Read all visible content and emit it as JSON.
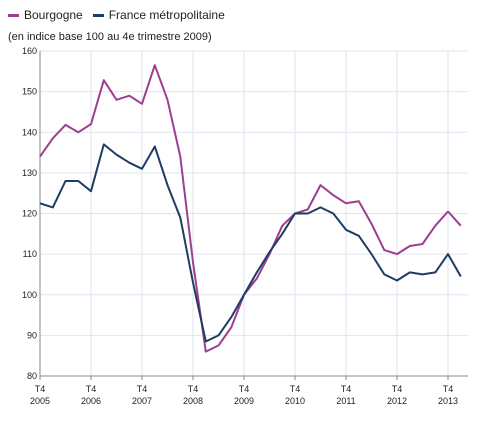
{
  "legend": {
    "series_1": "Bourgogne",
    "series_2": "France métropolitaine"
  },
  "subtitle": "(en indice base 100 au 4e trimestre 2009)",
  "colors": {
    "bourgogne": "#9b3f8f",
    "france": "#1f3c63",
    "grid": "#dde6f0",
    "axis": "#8a8a8a"
  },
  "chart_data": {
    "type": "line",
    "title": "",
    "subtitle": "(en indice base 100 au 4e trimestre 2009)",
    "xlabel": "",
    "ylabel": "",
    "ylim": [
      80,
      160
    ],
    "yticks": [
      80,
      90,
      100,
      110,
      120,
      130,
      140,
      150,
      160
    ],
    "x": [
      "2005T4",
      "2006T1",
      "2006T2",
      "2006T3",
      "2006T4",
      "2007T1",
      "2007T2",
      "2007T3",
      "2007T4",
      "2008T1",
      "2008T2",
      "2008T3",
      "2008T4",
      "2009T1",
      "2009T2",
      "2009T3",
      "2009T4",
      "2010T1",
      "2010T2",
      "2010T3",
      "2010T4",
      "2011T1",
      "2011T2",
      "2011T3",
      "2011T4",
      "2012T1",
      "2012T2",
      "2012T3",
      "2012T4",
      "2013T1",
      "2013T2",
      "2013T3",
      "2013T4",
      "2014T1"
    ],
    "xtick_labels": [
      {
        "top": "T4",
        "bottom": "2005"
      },
      {
        "top": "T4",
        "bottom": "2006"
      },
      {
        "top": "T4",
        "bottom": "2007"
      },
      {
        "top": "T4",
        "bottom": "2008"
      },
      {
        "top": "T4",
        "bottom": "2009"
      },
      {
        "top": "T4",
        "bottom": "2010"
      },
      {
        "top": "T4",
        "bottom": "2011"
      },
      {
        "top": "T4",
        "bottom": "2012"
      },
      {
        "top": "T4",
        "bottom": "2013"
      }
    ],
    "grid": true,
    "legend_position": "top-left",
    "series": [
      {
        "name": "Bourgogne",
        "values": [
          134,
          138.5,
          141.8,
          140,
          142,
          152.8,
          148,
          149,
          147,
          156.5,
          148,
          134,
          108,
          86,
          87.5,
          92,
          100,
          104,
          110,
          117,
          120,
          121,
          127,
          124.5,
          122.5,
          123,
          117.5,
          111,
          110,
          112,
          112.5,
          117,
          120.5,
          117
        ]
      },
      {
        "name": "France métropolitaine",
        "values": [
          122.5,
          121.5,
          128,
          128,
          125.5,
          137,
          134.5,
          132.5,
          131,
          136.5,
          127,
          119,
          103,
          88.5,
          90,
          94.5,
          100,
          105.5,
          110.5,
          115,
          120,
          120,
          121.5,
          120,
          116,
          114.5,
          110,
          105,
          103.5,
          105.5,
          105,
          105.5,
          110,
          104.5
        ]
      }
    ]
  }
}
